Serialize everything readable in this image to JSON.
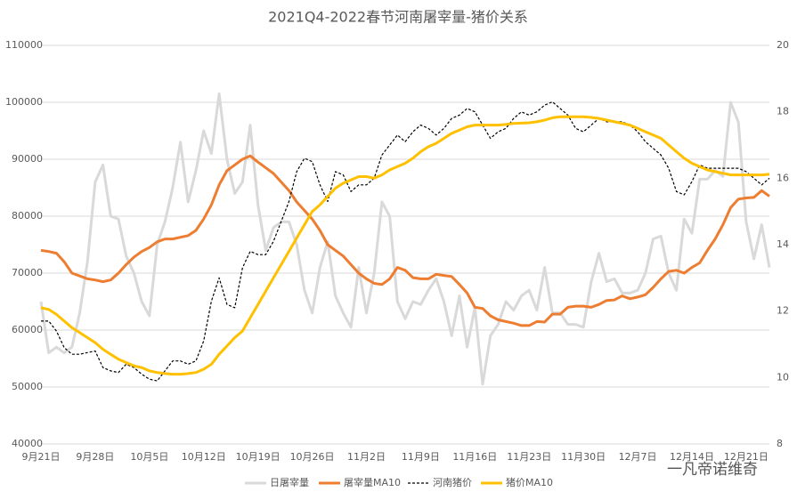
{
  "chart_data": {
    "type": "line",
    "title": "2021Q4-2022春节河南屠宰量-猪价关系",
    "watermark": "一凡帝诺维奇",
    "categories": [
      "9月21日",
      null,
      null,
      null,
      null,
      null,
      null,
      "9月28日",
      null,
      null,
      null,
      null,
      null,
      null,
      "10月5日",
      null,
      null,
      null,
      null,
      null,
      null,
      "10月12日",
      null,
      null,
      null,
      null,
      null,
      null,
      "10月19日",
      null,
      null,
      null,
      null,
      null,
      null,
      "10月26日",
      null,
      null,
      null,
      null,
      null,
      null,
      "11月2日",
      null,
      null,
      null,
      null,
      null,
      null,
      "11月9日",
      null,
      null,
      null,
      null,
      null,
      null,
      "11月16日",
      null,
      null,
      null,
      null,
      null,
      null,
      "11月23日",
      null,
      null,
      null,
      null,
      null,
      null,
      "11月30日",
      null,
      null,
      null,
      null,
      null,
      null,
      "12月7日",
      null,
      null,
      null,
      null,
      null,
      null,
      "12月14日",
      null,
      null,
      null,
      null,
      null,
      null,
      "12月21日",
      null,
      null,
      null
    ],
    "ylim": [
      40000,
      110000
    ],
    "yticks": [
      40000,
      50000,
      60000,
      70000,
      80000,
      90000,
      100000,
      110000
    ],
    "y2lim": [
      8,
      20
    ],
    "y2ticks": [
      8,
      10,
      12,
      14,
      16,
      18,
      20
    ],
    "grid": true,
    "legend": "bottom",
    "series": [
      {
        "name": "日屠宰量",
        "color": "#d9d9d9",
        "values": [
          65000,
          56000,
          57000,
          56000,
          57000,
          63000,
          72000,
          86000,
          89000,
          80000,
          79500,
          73000,
          70000,
          65000,
          62500,
          75000,
          79000,
          85000,
          93000,
          82500,
          88000,
          95000,
          91000,
          101500,
          90000,
          84000,
          86000,
          96000,
          82000,
          74000,
          78000,
          79000,
          79000,
          75000,
          67000,
          63000,
          71000,
          75500,
          66000,
          63000,
          60500,
          71000,
          63000,
          70000,
          82500,
          80000,
          65000,
          62000,
          65000,
          64500,
          67000,
          69000,
          65000,
          59000,
          66000,
          57000,
          64000,
          50500,
          59000,
          61000,
          65000,
          63500,
          66000,
          67000,
          63500,
          71000,
          63000,
          63000,
          61000,
          61000,
          60500,
          68500,
          73500,
          68500,
          69000,
          66500,
          66500,
          67000,
          70000,
          76000,
          76500,
          70000,
          67000,
          79500,
          77000,
          86500,
          86500,
          88000,
          87000,
          100000,
          96500,
          79000,
          72500,
          78500,
          71000
        ]
      },
      {
        "name": "屠宰量MA10",
        "color": "#ed7d31",
        "values": [
          74000,
          73800,
          73500,
          72000,
          70000,
          69500,
          69000,
          68800,
          68500,
          68800,
          70000,
          71500,
          72800,
          73800,
          74500,
          75500,
          76000,
          76000,
          76300,
          76600,
          77500,
          79500,
          82000,
          85500,
          88000,
          89000,
          90000,
          90600,
          89500,
          88500,
          87500,
          86000,
          84500,
          82500,
          81000,
          79500,
          77500,
          75000,
          74000,
          73000,
          71500,
          70000,
          69000,
          68200,
          68000,
          69000,
          71000,
          70500,
          69200,
          69000,
          69000,
          69800,
          69600,
          69400,
          68000,
          66500,
          64000,
          63800,
          62500,
          61800,
          61500,
          61200,
          60800,
          60800,
          61500,
          61400,
          62800,
          62800,
          64000,
          64200,
          64200,
          64000,
          64500,
          65200,
          65300,
          66000,
          65500,
          65800,
          66200,
          67500,
          69000,
          70300,
          70500,
          70000,
          71000,
          71800,
          74000,
          76000,
          78500,
          81500,
          83000,
          83200,
          83300,
          84500,
          83500
        ]
      },
      {
        "name": "河南猪价",
        "color": "#000000",
        "axis": "y2",
        "dashed": true,
        "values": [
          11.7,
          11.7,
          11.4,
          10.9,
          10.7,
          10.7,
          10.75,
          10.8,
          10.3,
          10.2,
          10.15,
          10.4,
          10.3,
          10.1,
          9.95,
          9.9,
          10.2,
          10.5,
          10.5,
          10.4,
          10.5,
          11.1,
          12.3,
          13.0,
          12.2,
          12.1,
          13.3,
          13.8,
          13.7,
          13.7,
          14.1,
          14.7,
          15.3,
          16.2,
          16.6,
          16.5,
          15.8,
          15.3,
          16.2,
          16.1,
          15.6,
          15.8,
          15.8,
          16.0,
          16.7,
          17.0,
          17.3,
          17.1,
          17.4,
          17.6,
          17.5,
          17.3,
          17.5,
          17.8,
          17.9,
          18.1,
          18.0,
          17.6,
          17.2,
          17.4,
          17.5,
          17.8,
          18.0,
          17.9,
          18.0,
          18.2,
          18.3,
          18.1,
          17.9,
          17.5,
          17.4,
          17.6,
          17.8,
          17.7,
          17.7,
          17.7,
          17.6,
          17.4,
          17.1,
          16.9,
          16.7,
          16.3,
          15.6,
          15.5,
          15.9,
          16.4,
          16.3,
          16.3,
          16.3,
          16.3,
          16.3,
          16.2,
          16.0,
          15.8,
          16.0
        ]
      },
      {
        "name": "猪价MA10",
        "color": "#ffc000",
        "axis": "y2",
        "values": [
          12.1,
          12.05,
          11.9,
          11.7,
          11.5,
          11.35,
          11.2,
          11.05,
          10.85,
          10.7,
          10.55,
          10.45,
          10.35,
          10.3,
          10.2,
          10.15,
          10.12,
          10.1,
          10.1,
          10.12,
          10.15,
          10.25,
          10.4,
          10.7,
          10.95,
          11.2,
          11.4,
          11.8,
          12.2,
          12.6,
          13.0,
          13.4,
          13.8,
          14.2,
          14.6,
          15.0,
          15.2,
          15.45,
          15.7,
          15.85,
          15.95,
          16.05,
          16.05,
          16.0,
          16.1,
          16.25,
          16.35,
          16.45,
          16.6,
          16.8,
          16.95,
          17.05,
          17.2,
          17.35,
          17.45,
          17.55,
          17.6,
          17.6,
          17.6,
          17.6,
          17.62,
          17.65,
          17.66,
          17.67,
          17.7,
          17.75,
          17.82,
          17.85,
          17.85,
          17.85,
          17.85,
          17.83,
          17.8,
          17.75,
          17.7,
          17.65,
          17.6,
          17.5,
          17.4,
          17.3,
          17.2,
          17.0,
          16.8,
          16.6,
          16.45,
          16.35,
          16.25,
          16.2,
          16.15,
          16.1,
          16.1,
          16.1,
          16.1,
          16.1,
          16.12
        ]
      }
    ]
  }
}
